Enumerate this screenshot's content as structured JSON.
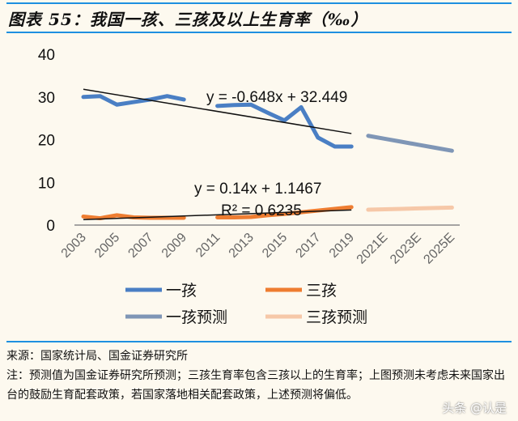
{
  "title": "图表 55：我国一孩、三孩及以上生育率（‰）",
  "source": "来源：国家统计局、国金证券研究所",
  "note": "注：预测值为国金证券研究所预测；三孩生育率包含三孩以上的生育率；上图预测未考虑未来国家出台的鼓励生育配套政策，若国家落地相关配套政策，上述预测将偏低。",
  "watermark": "头条 @认是",
  "chart_data": {
    "type": "line",
    "title": "",
    "xlabel": "",
    "ylabel": "",
    "ylim": [
      0,
      40
    ],
    "yticks": [
      "0",
      "10",
      "20",
      "30",
      "40"
    ],
    "grid": false,
    "legend_placement": "bottom",
    "categories": [
      "2003",
      "2004",
      "2005",
      "2006",
      "2007",
      "2008",
      "2009",
      "2010",
      "2011",
      "2012",
      "2013",
      "2014",
      "2015",
      "2016",
      "2017",
      "2018",
      "2019",
      "2020E",
      "2021E",
      "2022E",
      "2023E",
      "2024E",
      "2025E"
    ],
    "xtick_labels": [
      "2003",
      "2005",
      "2007",
      "2009",
      "2011",
      "2013",
      "2015",
      "2017",
      "2019",
      "2021E",
      "2023E",
      "2025E"
    ],
    "series": [
      {
        "name": "一孩",
        "color": "#4a7fc4",
        "values": [
          30.0,
          30.2,
          28.2,
          28.8,
          29.4,
          30.2,
          29.4,
          null,
          27.9,
          28.1,
          28.2,
          26.3,
          24.5,
          27.6,
          20.5,
          18.4,
          18.4,
          null,
          null,
          null,
          null,
          null,
          null
        ]
      },
      {
        "name": "三孩",
        "color": "#ee7d31",
        "values": [
          2.0,
          1.6,
          2.3,
          1.8,
          1.7,
          1.7,
          1.7,
          null,
          1.8,
          1.8,
          1.9,
          2.3,
          2.6,
          3.0,
          3.4,
          3.8,
          4.2,
          null,
          null,
          null,
          null,
          null,
          null
        ]
      },
      {
        "name": "一孩预测",
        "color": "#7f96b6",
        "values": [
          null,
          null,
          null,
          null,
          null,
          null,
          null,
          null,
          null,
          null,
          null,
          null,
          null,
          null,
          null,
          null,
          null,
          20.9,
          20.2,
          19.5,
          18.8,
          18.1,
          17.4
        ]
      },
      {
        "name": "三孩预测",
        "color": "#f6c8a8",
        "values": [
          null,
          null,
          null,
          null,
          null,
          null,
          null,
          null,
          null,
          null,
          null,
          null,
          null,
          null,
          null,
          null,
          null,
          3.6,
          3.7,
          3.8,
          3.9,
          4.0,
          4.1
        ]
      }
    ],
    "trendlines": [
      {
        "series": "一孩",
        "equation": "y = -0.648x + 32.449",
        "slope": -0.648,
        "intercept": 32.449,
        "r2": ""
      },
      {
        "series": "三孩",
        "equation": "y = 0.14x + 1.1467",
        "slope": 0.14,
        "intercept": 1.1467,
        "r2": "R² = 0.6235"
      }
    ]
  }
}
